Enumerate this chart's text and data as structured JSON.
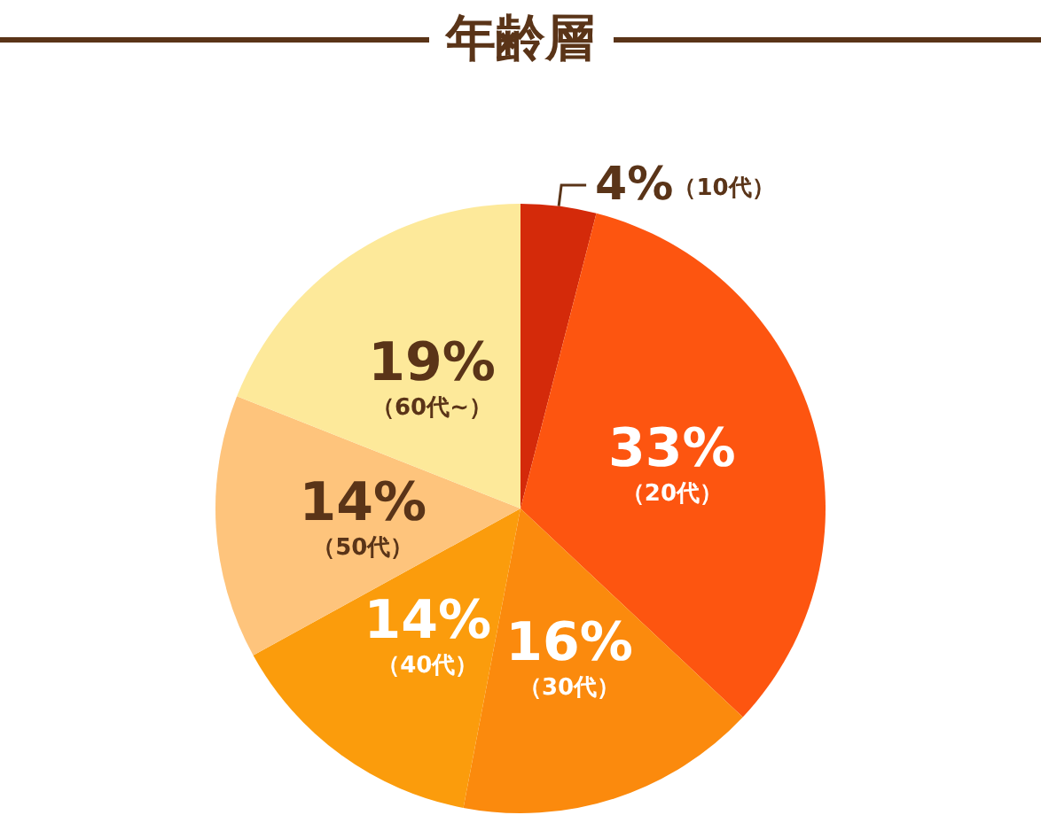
{
  "chart_data": {
    "type": "pie",
    "title": "年齢層",
    "categories": [
      "（10代）",
      "（20代）",
      "（30代）",
      "（40代）",
      "（50代）",
      "（60代~）"
    ],
    "values": [
      4,
      33,
      16,
      14,
      14,
      19
    ],
    "value_labels": [
      "4%",
      "33%",
      "16%",
      "14%",
      "14%",
      "19%"
    ],
    "colors": [
      "#d42a0a",
      "#fd5510",
      "#fb8a0d",
      "#fb9c0c",
      "#fec47c",
      "#fde99a"
    ]
  }
}
